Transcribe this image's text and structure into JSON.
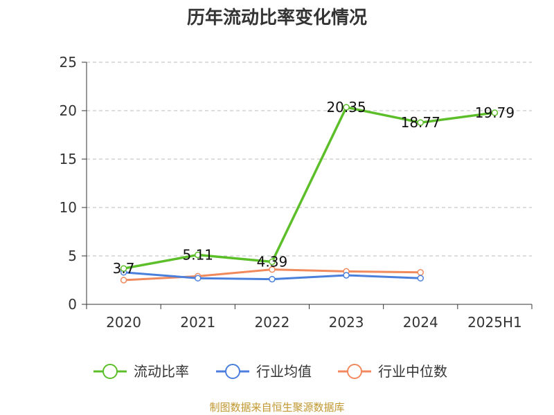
{
  "chart_data": {
    "type": "line",
    "title": "历年流动比率变化情况",
    "categories": [
      "2020",
      "2021",
      "2022",
      "2023",
      "2024",
      "2025H1"
    ],
    "ylim": [
      0,
      25
    ],
    "yticks": [
      0,
      5,
      10,
      15,
      20,
      25
    ],
    "grid": true,
    "legend_position": "bottom",
    "series": [
      {
        "name": "流动比率",
        "color": "#5cbf2a",
        "values": [
          3.7,
          5.11,
          4.39,
          20.35,
          18.77,
          19.79
        ],
        "labels": [
          "3.7",
          "5.11",
          "4.39",
          "20.35",
          "18.77",
          "19.79"
        ]
      },
      {
        "name": "行业均值",
        "color": "#4a7fdb",
        "values": [
          3.3,
          2.7,
          2.6,
          3.0,
          2.7,
          null
        ]
      },
      {
        "name": "行业中位数",
        "color": "#f08a5d",
        "values": [
          2.5,
          2.9,
          3.6,
          3.4,
          3.3,
          null
        ]
      }
    ]
  },
  "source": {
    "text": "制图数据来自恒生聚源数据库",
    "color": "#c0972f"
  }
}
